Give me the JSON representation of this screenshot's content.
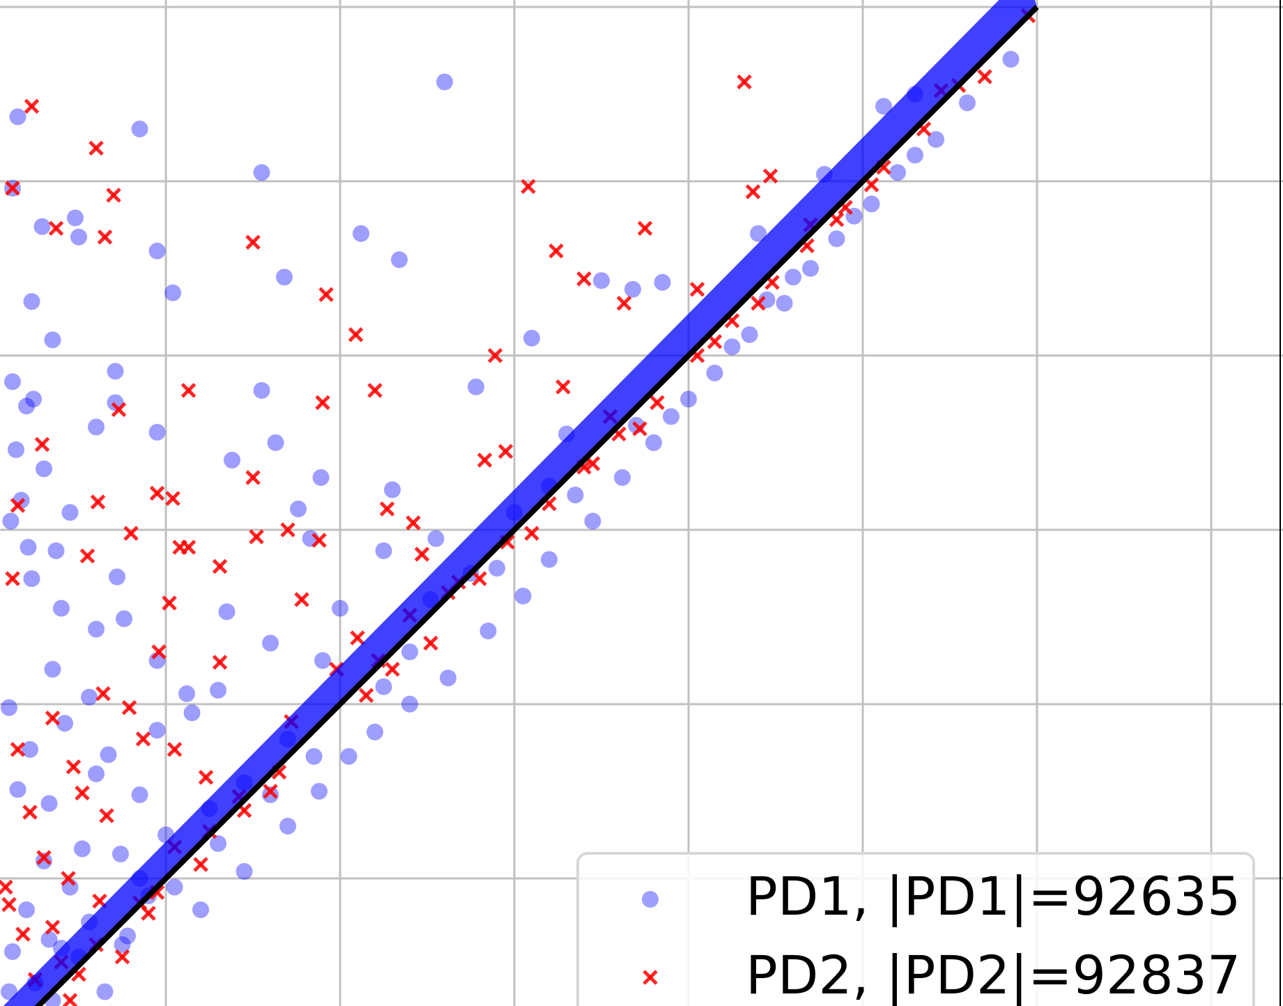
{
  "chart_data": {
    "type": "scatter",
    "title": "",
    "xlabel": "",
    "ylabel": "",
    "grid": true,
    "legend_position": "bottom-right",
    "diagonal": {
      "from": [
        0,
        0
      ],
      "to": [
        6,
        6
      ],
      "color": "#000000"
    },
    "series": [
      {
        "name": "PD1, |PD1|=92635",
        "marker": "circle",
        "color": "#0000ff",
        "points": [
          [
            0.15,
            5.37
          ],
          [
            0.85,
            5.3
          ],
          [
            0.12,
            4.96
          ],
          [
            0.5,
            4.68
          ],
          [
            0.48,
            4.79
          ],
          [
            0.29,
            4.74
          ],
          [
            2.6,
            5.57
          ],
          [
            1.68,
            4.45
          ],
          [
            1.04,
            4.36
          ],
          [
            0.23,
            4.31
          ],
          [
            0.35,
            4.09
          ],
          [
            0.12,
            3.85
          ],
          [
            0.24,
            3.75
          ],
          [
            0.2,
            3.71
          ],
          [
            0.95,
            3.56
          ],
          [
            0.71,
            3.73
          ],
          [
            1.38,
            3.4
          ],
          [
            0.14,
            3.46
          ],
          [
            0.71,
            3.91
          ],
          [
            0.6,
            3.59
          ],
          [
            0.17,
            3.17
          ],
          [
            0.3,
            3.35
          ],
          [
            0.11,
            3.05
          ],
          [
            0.45,
            3.1
          ],
          [
            0.21,
            2.9
          ],
          [
            0.37,
            2.88
          ],
          [
            0.72,
            2.73
          ],
          [
            0.23,
            2.72
          ],
          [
            1.63,
            3.5
          ],
          [
            1.55,
            3.8
          ],
          [
            1.89,
            3.3
          ],
          [
            2.3,
            3.23
          ],
          [
            1.76,
            3.12
          ],
          [
            1.83,
            2.95
          ],
          [
            2.25,
            2.88
          ],
          [
            2.55,
            2.95
          ],
          [
            0.35,
            2.2
          ],
          [
            0.56,
            2.04
          ],
          [
            0.1,
            1.98
          ],
          [
            0.4,
            2.55
          ],
          [
            0.6,
            2.43
          ],
          [
            0.76,
            2.49
          ],
          [
            0.95,
            2.25
          ],
          [
            1.12,
            2.06
          ],
          [
            1.3,
            2.08
          ],
          [
            0.42,
            1.89
          ],
          [
            0.22,
            1.74
          ],
          [
            0.67,
            1.71
          ],
          [
            0.15,
            1.51
          ],
          [
            0.33,
            1.43
          ],
          [
            0.52,
            1.17
          ],
          [
            0.74,
            1.14
          ],
          [
            0.85,
            1.0
          ],
          [
            0.45,
            0.95
          ],
          [
            0.2,
            0.82
          ],
          [
            0.12,
            0.58
          ],
          [
            0.33,
            0.65
          ],
          [
            0.56,
            0.75
          ],
          [
            0.78,
            0.67
          ],
          [
            1.05,
            0.95
          ],
          [
            1.2,
            0.82
          ],
          [
            1.45,
            1.04
          ],
          [
            1.7,
            1.3
          ],
          [
            1.88,
            1.5
          ],
          [
            2.05,
            1.7
          ],
          [
            2.2,
            1.84
          ],
          [
            2.4,
            2.0
          ],
          [
            2.62,
            2.15
          ],
          [
            2.85,
            2.42
          ],
          [
            3.05,
            2.62
          ],
          [
            3.2,
            2.83
          ],
          [
            3.45,
            3.05
          ],
          [
            3.62,
            3.3
          ],
          [
            3.8,
            3.5
          ],
          [
            4.0,
            3.75
          ],
          [
            4.15,
            3.9
          ],
          [
            4.35,
            4.12
          ],
          [
            4.55,
            4.3
          ],
          [
            4.7,
            4.5
          ],
          [
            4.85,
            4.67
          ],
          [
            5.05,
            4.87
          ],
          [
            5.2,
            5.05
          ],
          [
            5.42,
            5.24
          ],
          [
            5.6,
            5.45
          ],
          [
            5.85,
            5.7
          ],
          [
            2.34,
            4.55
          ],
          [
            2.12,
            4.7
          ],
          [
            1.55,
            5.05
          ],
          [
            0.95,
            4.6
          ],
          [
            3.5,
            4.43
          ],
          [
            3.85,
            4.42
          ],
          [
            3.1,
            4.1
          ],
          [
            2.78,
            3.82
          ],
          [
            3.3,
            3.55
          ],
          [
            3.68,
            4.38
          ],
          [
            4.4,
            4.7
          ],
          [
            4.78,
            5.04
          ],
          [
            5.12,
            5.43
          ],
          [
            5.3,
            5.5
          ],
          [
            1.35,
            2.53
          ],
          [
            1.6,
            2.35
          ],
          [
            1.9,
            2.25
          ],
          [
            2.0,
            2.55
          ],
          [
            2.52,
            2.6
          ],
          [
            2.75,
            2.75
          ],
          [
            3.0,
            3.1
          ],
          [
            3.2,
            3.25
          ],
          [
            0.95,
            1.85
          ],
          [
            1.15,
            1.95
          ],
          [
            1.45,
            1.55
          ],
          [
            1.7,
            1.8
          ],
          [
            0.6,
            1.6
          ],
          [
            0.85,
            1.48
          ],
          [
            1.0,
            1.25
          ],
          [
            1.25,
            1.4
          ],
          [
            0.3,
            1.1
          ],
          [
            0.5,
            0.55
          ],
          [
            0.9,
            0.9
          ],
          [
            0.1,
            0.35
          ],
          [
            0.25,
            0.4
          ],
          [
            0.4,
            0.6
          ],
          [
            0.65,
            0.35
          ],
          [
            0.15,
            0.2
          ],
          [
            0.05,
            0.12
          ],
          [
            0.35,
            0.3
          ],
          [
            2.4,
            2.3
          ],
          [
            2.9,
            2.78
          ],
          [
            3.35,
            3.2
          ],
          [
            3.9,
            3.65
          ],
          [
            4.25,
            4.05
          ],
          [
            4.6,
            4.45
          ],
          [
            4.95,
            4.8
          ],
          [
            5.3,
            5.15
          ],
          [
            1.3,
            1.2
          ],
          [
            1.85,
            1.7
          ],
          [
            2.25,
            2.1
          ],
          [
            0.75,
            0.62
          ],
          [
            1.6,
            1.48
          ],
          [
            3.7,
            3.6
          ],
          [
            4.45,
            4.32
          ]
        ]
      },
      {
        "name": "PD2, |PD2|=92837",
        "marker": "x",
        "color": "#ff0000",
        "points": [
          [
            0.23,
            5.43
          ],
          [
            0.6,
            5.19
          ],
          [
            0.12,
            4.96
          ],
          [
            0.7,
            4.92
          ],
          [
            0.37,
            4.73
          ],
          [
            0.65,
            4.68
          ],
          [
            1.5,
            4.65
          ],
          [
            4.32,
            5.57
          ],
          [
            3.08,
            4.97
          ],
          [
            3.63,
            4.3
          ],
          [
            4.47,
            5.03
          ],
          [
            4.37,
            4.94
          ],
          [
            3.75,
            4.73
          ],
          [
            3.24,
            4.6
          ],
          [
            1.92,
            4.35
          ],
          [
            2.89,
            4.0
          ],
          [
            3.4,
            4.44
          ],
          [
            2.2,
            3.8
          ],
          [
            2.09,
            4.12
          ],
          [
            1.13,
            3.8
          ],
          [
            0.73,
            3.69
          ],
          [
            0.95,
            3.21
          ],
          [
            0.29,
            3.49
          ],
          [
            0.15,
            3.14
          ],
          [
            0.61,
            3.16
          ],
          [
            0.8,
            2.98
          ],
          [
            0.55,
            2.85
          ],
          [
            0.12,
            2.72
          ],
          [
            1.08,
            2.9
          ],
          [
            1.31,
            2.79
          ],
          [
            1.52,
            2.96
          ],
          [
            1.7,
            3.0
          ],
          [
            1.88,
            2.94
          ],
          [
            2.27,
            3.12
          ],
          [
            2.42,
            3.04
          ],
          [
            2.83,
            3.4
          ],
          [
            2.47,
            2.86
          ],
          [
            2.62,
            2.64
          ],
          [
            0.64,
            2.06
          ],
          [
            0.79,
            1.98
          ],
          [
            0.35,
            1.92
          ],
          [
            0.15,
            1.74
          ],
          [
            0.47,
            1.64
          ],
          [
            0.52,
            1.49
          ],
          [
            0.22,
            1.38
          ],
          [
            0.66,
            1.36
          ],
          [
            0.44,
            1.0
          ],
          [
            0.62,
            0.87
          ],
          [
            0.85,
            0.86
          ],
          [
            0.95,
            0.92
          ],
          [
            1.05,
            1.18
          ],
          [
            1.25,
            1.27
          ],
          [
            1.45,
            1.39
          ],
          [
            1.65,
            1.61
          ],
          [
            1.72,
            1.9
          ],
          [
            1.98,
            2.2
          ],
          [
            2.22,
            2.25
          ],
          [
            2.4,
            2.51
          ],
          [
            2.68,
            2.7
          ],
          [
            2.96,
            2.93
          ],
          [
            3.2,
            3.15
          ],
          [
            3.4,
            3.36
          ],
          [
            3.6,
            3.55
          ],
          [
            3.82,
            3.73
          ],
          [
            4.05,
            4.0
          ],
          [
            4.25,
            4.2
          ],
          [
            4.48,
            4.42
          ],
          [
            4.68,
            4.63
          ],
          [
            4.9,
            4.85
          ],
          [
            5.12,
            5.08
          ],
          [
            5.35,
            5.3
          ],
          [
            5.55,
            5.55
          ],
          [
            5.95,
            5.95
          ],
          [
            1.13,
            2.9
          ],
          [
            1.04,
            3.18
          ],
          [
            1.9,
            3.73
          ],
          [
            1.5,
            3.3
          ],
          [
            1.02,
            2.58
          ],
          [
            0.96,
            2.3
          ],
          [
            1.31,
            2.24
          ],
          [
            0.87,
            1.8
          ],
          [
            1.05,
            1.74
          ],
          [
            1.23,
            1.58
          ],
          [
            0.1,
            0.85
          ],
          [
            0.35,
            0.72
          ],
          [
            0.6,
            0.62
          ],
          [
            0.25,
            0.42
          ],
          [
            0.15,
            0.18
          ],
          [
            0.45,
            0.3
          ],
          [
            0.75,
            0.55
          ],
          [
            0.08,
            0.95
          ],
          [
            0.3,
            1.12
          ],
          [
            0.18,
            0.68
          ],
          [
            1.78,
            2.6
          ],
          [
            2.1,
            2.38
          ],
          [
            0.4,
            0.52
          ],
          [
            3.28,
            3.82
          ],
          [
            3.55,
            3.65
          ],
          [
            2.95,
            3.45
          ],
          [
            4.05,
            4.38
          ],
          [
            4.7,
            4.75
          ],
          [
            5.45,
            5.52
          ],
          [
            1.42,
            1.47
          ],
          [
            2.15,
            2.05
          ],
          [
            2.52,
            2.35
          ],
          [
            3.1,
            2.98
          ],
          [
            3.72,
            3.58
          ],
          [
            4.4,
            4.3
          ],
          [
            5.05,
            4.98
          ],
          [
            5.7,
            5.6
          ],
          [
            0.5,
            0.45
          ],
          [
            0.9,
            0.8
          ],
          [
            1.6,
            1.5
          ],
          [
            2.3,
            2.2
          ],
          [
            2.8,
            2.72
          ],
          [
            3.45,
            3.38
          ],
          [
            4.15,
            4.08
          ],
          [
            4.85,
            4.78
          ],
          [
            0.2,
            0.1
          ],
          [
            1.2,
            1.08
          ]
        ]
      }
    ]
  }
}
